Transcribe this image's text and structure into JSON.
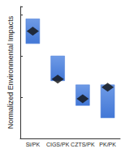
{
  "chart_data": {
    "type": "range_bar",
    "ylabel": "Normalized Environmental Impacts",
    "categories": [
      "Si/PK",
      "CIGS/PK",
      "CZTS/PK",
      "PK/PK"
    ],
    "low": [
      1.15,
      0.7,
      0.4,
      0.25
    ],
    "high": [
      1.45,
      1.0,
      0.65,
      0.65
    ],
    "values": [
      1.3,
      0.72,
      0.48,
      0.62
    ],
    "color": "#4277d6",
    "marker": "diamond",
    "ylim": [
      0,
      1.6
    ],
    "yticks": [
      0,
      0.5,
      1,
      1.5
    ],
    "tick_labels": "x",
    "grid": false
  }
}
